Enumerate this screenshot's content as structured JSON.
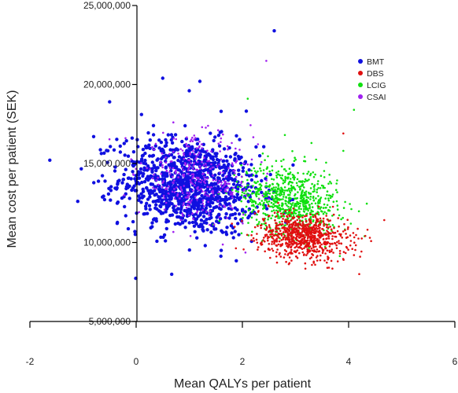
{
  "chart_data": {
    "type": "scatter",
    "xlabel": "Mean QALYs per patient",
    "ylabel": "Mean cost per patient (SEK)",
    "xlim": [
      -2,
      6
    ],
    "ylim": [
      5000000,
      25000000
    ],
    "x_ticks": [
      -2,
      0,
      2,
      4,
      6
    ],
    "y_ticks": [
      5000000,
      10000000,
      15000000,
      20000000,
      25000000
    ],
    "x_tick_labels": [
      "-2",
      "0",
      "2",
      "4",
      "6"
    ],
    "y_tick_labels": [
      "5,000,000",
      "10,000,000",
      "15,000,000",
      "20,000,000",
      "25,000,000"
    ],
    "legend_position": "top-right",
    "grid": false,
    "series": [
      {
        "name": "BMT",
        "color": "#1010e0",
        "marker_radius": 2.2,
        "draw_order": 0,
        "point_cloud": {
          "count": 1100,
          "mean_x": 1.0,
          "mean_y": 13600000,
          "sd_x": 0.65,
          "sd_y": 1500000,
          "correlation": -0.15
        },
        "points": [
          [
            2.6,
            23400000
          ],
          [
            0.5,
            20400000
          ],
          [
            1.2,
            20200000
          ],
          [
            -0.5,
            18900000
          ],
          [
            -1.1,
            12600000
          ],
          [
            -0.8,
            16700000
          ],
          [
            0.1,
            18100000
          ],
          [
            1.0,
            19600000
          ],
          [
            1.6,
            18300000
          ],
          [
            0.3,
            11000000
          ],
          [
            1.3,
            9800000
          ],
          [
            -0.3,
            16100000
          ],
          [
            2.0,
            12000000
          ],
          [
            1.8,
            10600000
          ]
        ]
      },
      {
        "name": "DBS",
        "color": "#e01010",
        "marker_radius": 1.3,
        "draw_order": 2,
        "point_cloud": {
          "count": 800,
          "mean_x": 3.15,
          "mean_y": 10400000,
          "sd_x": 0.42,
          "sd_y": 720000,
          "correlation": -0.2
        },
        "points": [
          [
            3.9,
            16900000
          ],
          [
            4.2,
            8000000
          ],
          [
            4.4,
            10300000
          ],
          [
            2.4,
            11400000
          ],
          [
            2.3,
            9700000
          ],
          [
            3.6,
            8400000
          ],
          [
            4.1,
            9200000
          ]
        ]
      },
      {
        "name": "LCIG",
        "color": "#10e010",
        "marker_radius": 1.3,
        "draw_order": 1,
        "point_cloud": {
          "count": 750,
          "mean_x": 2.9,
          "mean_y": 12700000,
          "sd_x": 0.45,
          "sd_y": 1100000,
          "correlation": -0.2
        },
        "points": [
          [
            4.1,
            18400000
          ],
          [
            2.1,
            19100000
          ],
          [
            3.3,
            16300000
          ],
          [
            4.3,
            10400000
          ],
          [
            2.8,
            16800000
          ],
          [
            3.9,
            15800000
          ]
        ]
      },
      {
        "name": "CSAI",
        "color": "#a020f0",
        "marker_radius": 1.3,
        "draw_order": 3,
        "point_cloud": {
          "count": 320,
          "mean_x": 1.15,
          "mean_y": 14000000,
          "sd_x": 0.55,
          "sd_y": 1300000,
          "correlation": -0.1
        },
        "points": [
          [
            2.45,
            21500000
          ],
          [
            0.7,
            17600000
          ],
          [
            -0.2,
            16600000
          ],
          [
            1.8,
            16300000
          ]
        ]
      }
    ]
  }
}
